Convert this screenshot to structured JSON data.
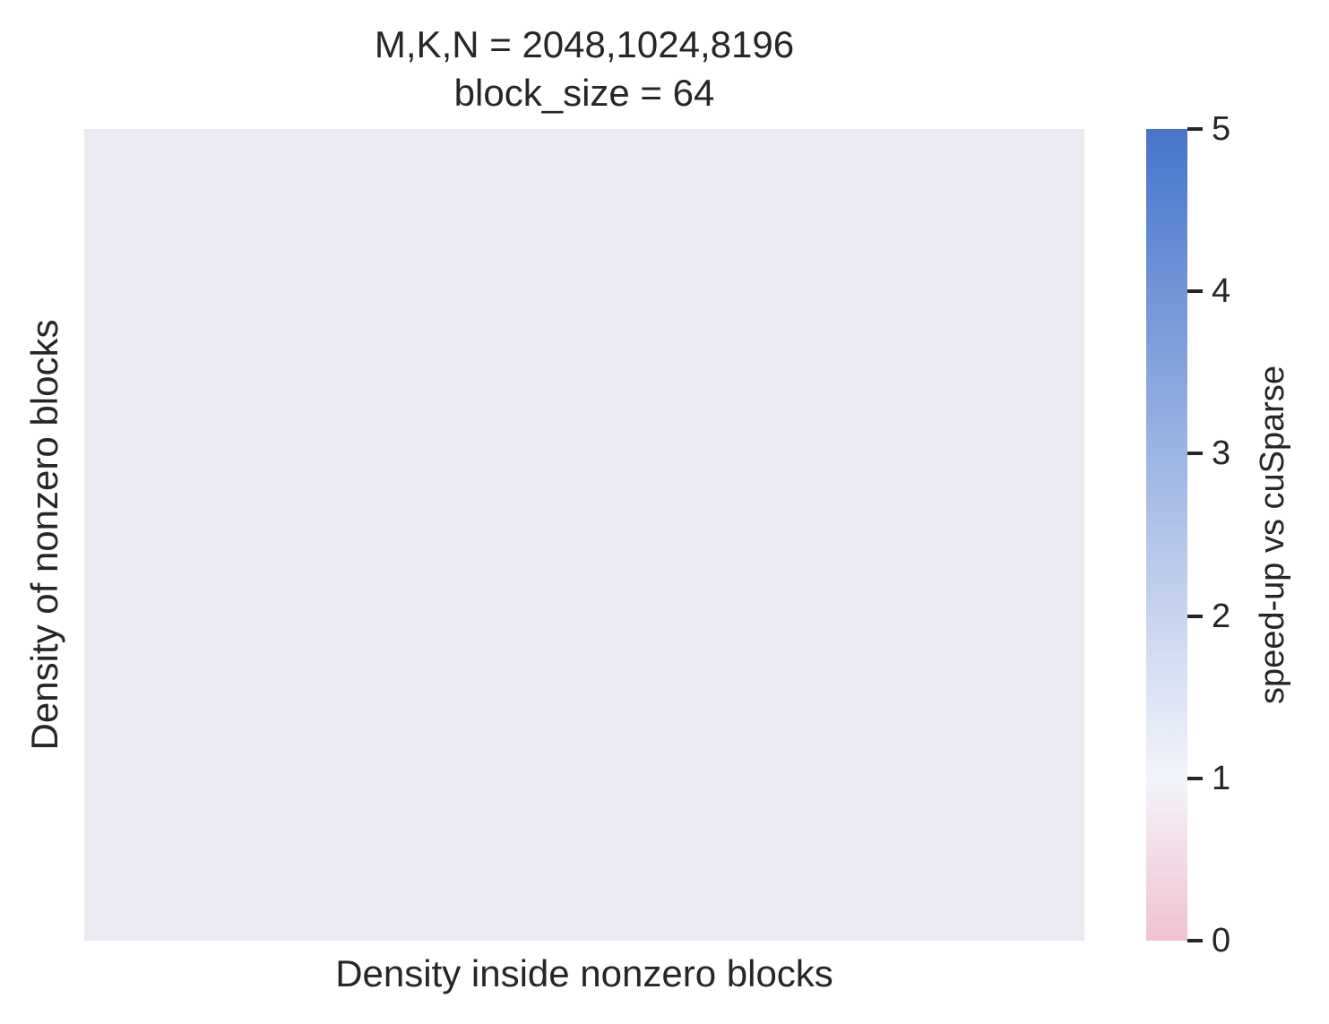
{
  "chart_data": {
    "type": "heatmap",
    "title_lines": [
      "M,K,N = 2048,1024,8196",
      "block_size = 64"
    ],
    "xlabel": "Density inside nonzero blocks",
    "ylabel": "Density of nonzero blocks",
    "x_categories": [],
    "y_categories": [],
    "values": [],
    "grid": false,
    "colorbar": {
      "label": "speed-up vs cuSparse",
      "range": [
        0,
        5
      ],
      "ticks": [
        0,
        1,
        2,
        3,
        4,
        5
      ],
      "tick_labels": [
        "0",
        "1",
        "2",
        "3",
        "4",
        "5"
      ],
      "color_stops": [
        {
          "value": 0,
          "color": "#f2c1d1"
        },
        {
          "value": 1,
          "color": "#f3f4fb"
        },
        {
          "value": 5,
          "color": "#4575cc"
        }
      ]
    },
    "background_color": "#eaeaf2"
  }
}
